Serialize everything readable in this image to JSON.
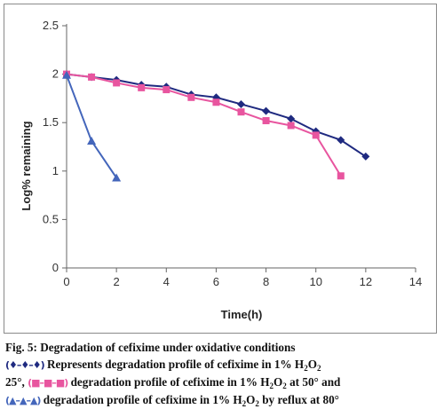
{
  "chart_data": {
    "type": "line",
    "xlabel": "Time(h)",
    "ylabel": "Log% remaining",
    "xlim": [
      0,
      14
    ],
    "ylim": [
      0,
      2.5
    ],
    "x_ticks": [
      "0",
      "2",
      "4",
      "6",
      "8",
      "10",
      "12",
      "14"
    ],
    "y_ticks": [
      "0",
      "0.5",
      "1",
      "1.5",
      "2",
      "2.5"
    ],
    "grid": false,
    "legend": "none",
    "series": [
      {
        "marker": "diamond",
        "color": "#1f2a80",
        "x": [
          0,
          1,
          2,
          3,
          4,
          5,
          6,
          7,
          8,
          9,
          10,
          11,
          12
        ],
        "y": [
          2.0,
          1.97,
          1.94,
          1.89,
          1.87,
          1.79,
          1.76,
          1.69,
          1.62,
          1.54,
          1.41,
          1.32,
          1.15
        ]
      },
      {
        "marker": "square",
        "color": "#e8559f",
        "x": [
          0,
          1,
          2,
          3,
          4,
          5,
          6,
          7,
          8,
          9,
          10,
          11
        ],
        "y": [
          2.0,
          1.97,
          1.91,
          1.86,
          1.84,
          1.76,
          1.71,
          1.61,
          1.52,
          1.47,
          1.37,
          0.95
        ]
      },
      {
        "marker": "triangle",
        "color": "#4466bb",
        "x": [
          0,
          1,
          2
        ],
        "y": [
          1.99,
          1.31,
          0.93
        ]
      }
    ]
  },
  "caption": {
    "title": "Fig. 5: Degradation of cefixime under oxidative conditions",
    "legend_diamond": "(♦–♦–♦)",
    "legend_square": "(■–■–■)",
    "legend_triangle": "(▲–▲–▲)",
    "line2_a": "Represents degradation profile of cefixime in 1% H",
    "line2_sub": "2",
    "line2_b": "O",
    "line2_sub2": "2",
    "line3_a": "25°, ",
    "line3_b": " degradation profile of cefixime in 1% H",
    "line3_sub": "2",
    "line3_c": "O",
    "line3_sub2": "2",
    "line3_d": " at 50° and",
    "line4_b": " degradation profile of cefixime in 1% H",
    "line4_sub": "2",
    "line4_c": "O",
    "line4_sub2": "2",
    "line4_d": " by reflux at 80°"
  }
}
